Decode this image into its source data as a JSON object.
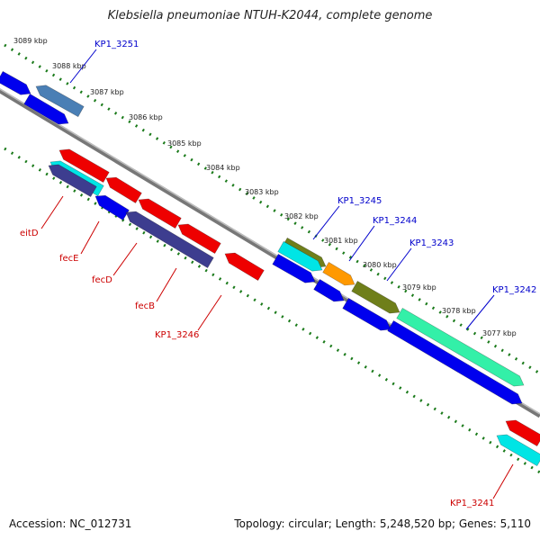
{
  "title": "Klebsiella pneumoniae NTUH-K2044, complete genome",
  "footer": {
    "accession": "Accession: NC_012731",
    "topology": "Topology: circular; Length: 5,248,520 bp; Genes: 5,110"
  },
  "ticks": [
    {
      "label": "3089 kbp"
    },
    {
      "label": "3088 kbp"
    },
    {
      "label": "3087 kbp"
    },
    {
      "label": "3086 kbp"
    },
    {
      "label": "3085 kbp"
    },
    {
      "label": "3084 kbp"
    },
    {
      "label": "3083 kbp"
    },
    {
      "label": "3082 kbp"
    },
    {
      "label": "3081 kbp"
    },
    {
      "label": "3080 kbp"
    },
    {
      "label": "3079 kbp"
    },
    {
      "label": "3078 kbp"
    },
    {
      "label": "3077 kbp"
    }
  ],
  "gene_labels_forward": [
    "KP1_3251",
    "KP1_3245",
    "KP1_3244",
    "KP1_3243",
    "KP1_3242"
  ],
  "gene_labels_reverse": [
    "eitD",
    "fecE",
    "fecD",
    "fecB",
    "KP1_3246",
    "KP1_3241"
  ],
  "colors": {
    "backbone": "#8c8c8c",
    "tick_outer": "#1a7a1a",
    "tick_inner": "#1a7a1a",
    "fwd_label": "#0000cc",
    "rev_label": "#cc0000",
    "blue": "#0000ee",
    "steelblue": "#4a7fb5",
    "cyan": "#00e5e5",
    "red": "#ee0000",
    "navy": "#3d3d8f",
    "olive": "#6f7f1a",
    "orange": "#ff9900",
    "aquamarine": "#33f0a8"
  }
}
